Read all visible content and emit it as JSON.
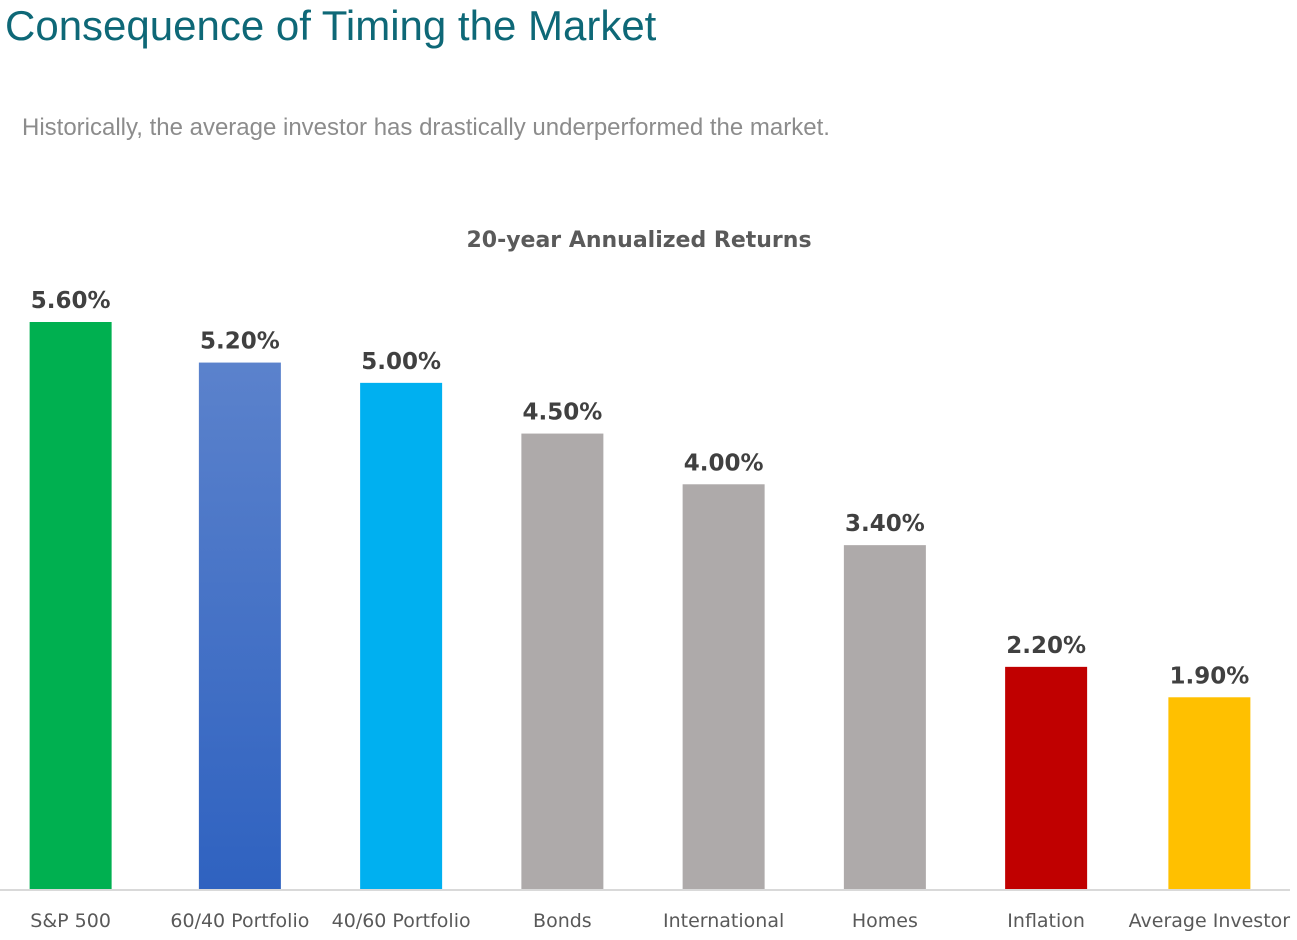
{
  "header": {
    "title": "Consequence of Timing the Market",
    "subtitle": "Historically, the average investor has drastically underperformed the market."
  },
  "chart_data": {
    "type": "bar",
    "title": "20-year Annualized Returns",
    "xlabel": "",
    "ylabel": "",
    "ylim": [
      0,
      5.6
    ],
    "grid": false,
    "legend": "none",
    "categories": [
      "S&P 500",
      "60/40 Portfolio",
      "40/60 Portfolio",
      "Bonds",
      "International",
      "Homes",
      "Inflation",
      "Average Investor"
    ],
    "values": [
      5.6,
      5.2,
      5.0,
      4.5,
      4.0,
      3.4,
      2.2,
      1.9
    ],
    "data_labels": [
      "5.60%",
      "5.20%",
      "5.00%",
      "4.50%",
      "4.00%",
      "3.40%",
      "2.20%",
      "1.90%"
    ],
    "colors": [
      "#00b050",
      "#4472c4",
      "#00b0f0",
      "#aeaaaa",
      "#aeaaaa",
      "#aeaaaa",
      "#c00000",
      "#ffc000"
    ]
  }
}
